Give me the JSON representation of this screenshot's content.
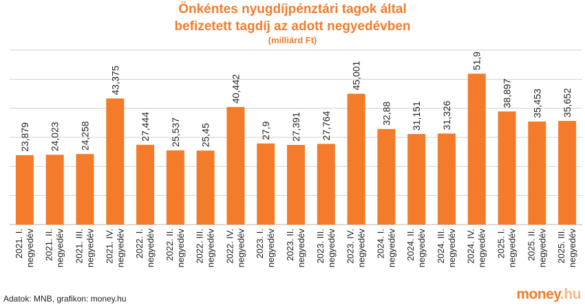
{
  "header": {
    "title_line1": "Önkéntes nyugdíjpénztári tagok által",
    "title_line2": "befizetett tagdíj az adott negyedévben",
    "subtitle": "(milliárd Ft)"
  },
  "footer": {
    "source": "Adatok: MNB, grafikon: money.hu",
    "logo_main": "money",
    "logo_domain": ".hu"
  },
  "colors": {
    "bar": "#f47b2a",
    "title": "#f47b2a",
    "grid": "#cfcfcf"
  },
  "chart_data": {
    "type": "bar",
    "title": "Önkéntes nyugdíjpénztári tagok által befizetett tagdíj az adott negyedévben",
    "subtitle": "(milliárd Ft)",
    "categories": [
      [
        "2021. I.",
        "negyedév"
      ],
      [
        "2021. II.",
        "negyedév"
      ],
      [
        "2021. III.",
        "negyedév"
      ],
      [
        "2021. IV.",
        "negyedév"
      ],
      [
        "2022. I.",
        "negyedév"
      ],
      [
        "2022. II.",
        "negyedév"
      ],
      [
        "2022. III.",
        "negyedév"
      ],
      [
        "2022. IV.",
        "negyedév"
      ],
      [
        "2023. I.",
        "negyedév"
      ],
      [
        "2023. II.",
        "negyedév"
      ],
      [
        "2023. III.",
        "negyedév"
      ],
      [
        "2023. IV.",
        "negyedév"
      ],
      [
        "2024. I.",
        "negyedév"
      ],
      [
        "2024. II.",
        "negyedév"
      ],
      [
        "2024. III.",
        "negyedév"
      ],
      [
        "2024. IV.",
        "negyedév"
      ],
      [
        "2025. I.",
        "negyedév"
      ],
      [
        "2025. II.",
        "negyedév"
      ],
      [
        "2025. III.",
        "negyedév"
      ]
    ],
    "values": [
      23.879,
      24.023,
      24.258,
      43.375,
      27.444,
      25.537,
      25.45,
      40.442,
      27.9,
      27.391,
      27.764,
      45.001,
      32.88,
      31.151,
      31.326,
      51.9,
      38.897,
      35.453,
      35.652
    ],
    "value_labels": [
      "23,879",
      "24,023",
      "24,258",
      "43,375",
      "27,444",
      "25,537",
      "25,45",
      "40,442",
      "27,9",
      "27,391",
      "27,764",
      "45,001",
      "32,88",
      "31,151",
      "31,326",
      "51,9",
      "38,897",
      "35,453",
      "35,652"
    ],
    "ylim": [
      0,
      60
    ],
    "grid": true,
    "gridlines": [
      0,
      10,
      20,
      30,
      40,
      50,
      60
    ],
    "y_tick_labels_shown": false
  }
}
